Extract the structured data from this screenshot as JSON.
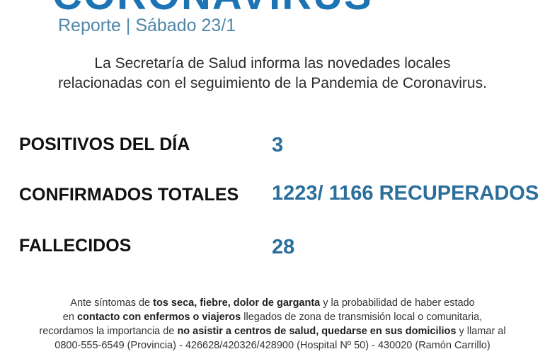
{
  "header": {
    "title": "CORONAVIRUS",
    "subtitle": "Reporte | Sábado  23/1"
  },
  "intro": [
    "La Secretaría de Salud informa las novedades locales",
    "relacionadas con el seguimiento de la Pandemia de Coronavirus."
  ],
  "stats": [
    {
      "label": "POSITIVOS DEL DÍA",
      "value": "3"
    },
    {
      "label": "CONFIRMADOS TOTALES",
      "value": "1223/  1166 RECUPERADOS"
    },
    {
      "label": "FALLECIDOS",
      "value": "28"
    }
  ],
  "footer": {
    "l1": [
      "Ante síntomas de ",
      "tos seca, fiebre, dolor de garganta",
      " y la probabilidad de haber estado"
    ],
    "l2": [
      "en ",
      "contacto con enfermos o viajeros",
      " llegados de zona de transmisión local o comunitaria,"
    ],
    "l3": [
      "recordamos la importancia de ",
      "no asistir a centros de salud, quedarse en sus domicilios",
      " y llamar al"
    ],
    "l4": "0800-555-6549 (Provincia) - 426628/420326/428900 (Hospital Nº 50) - 430020 (Ramón Carrillo)"
  }
}
